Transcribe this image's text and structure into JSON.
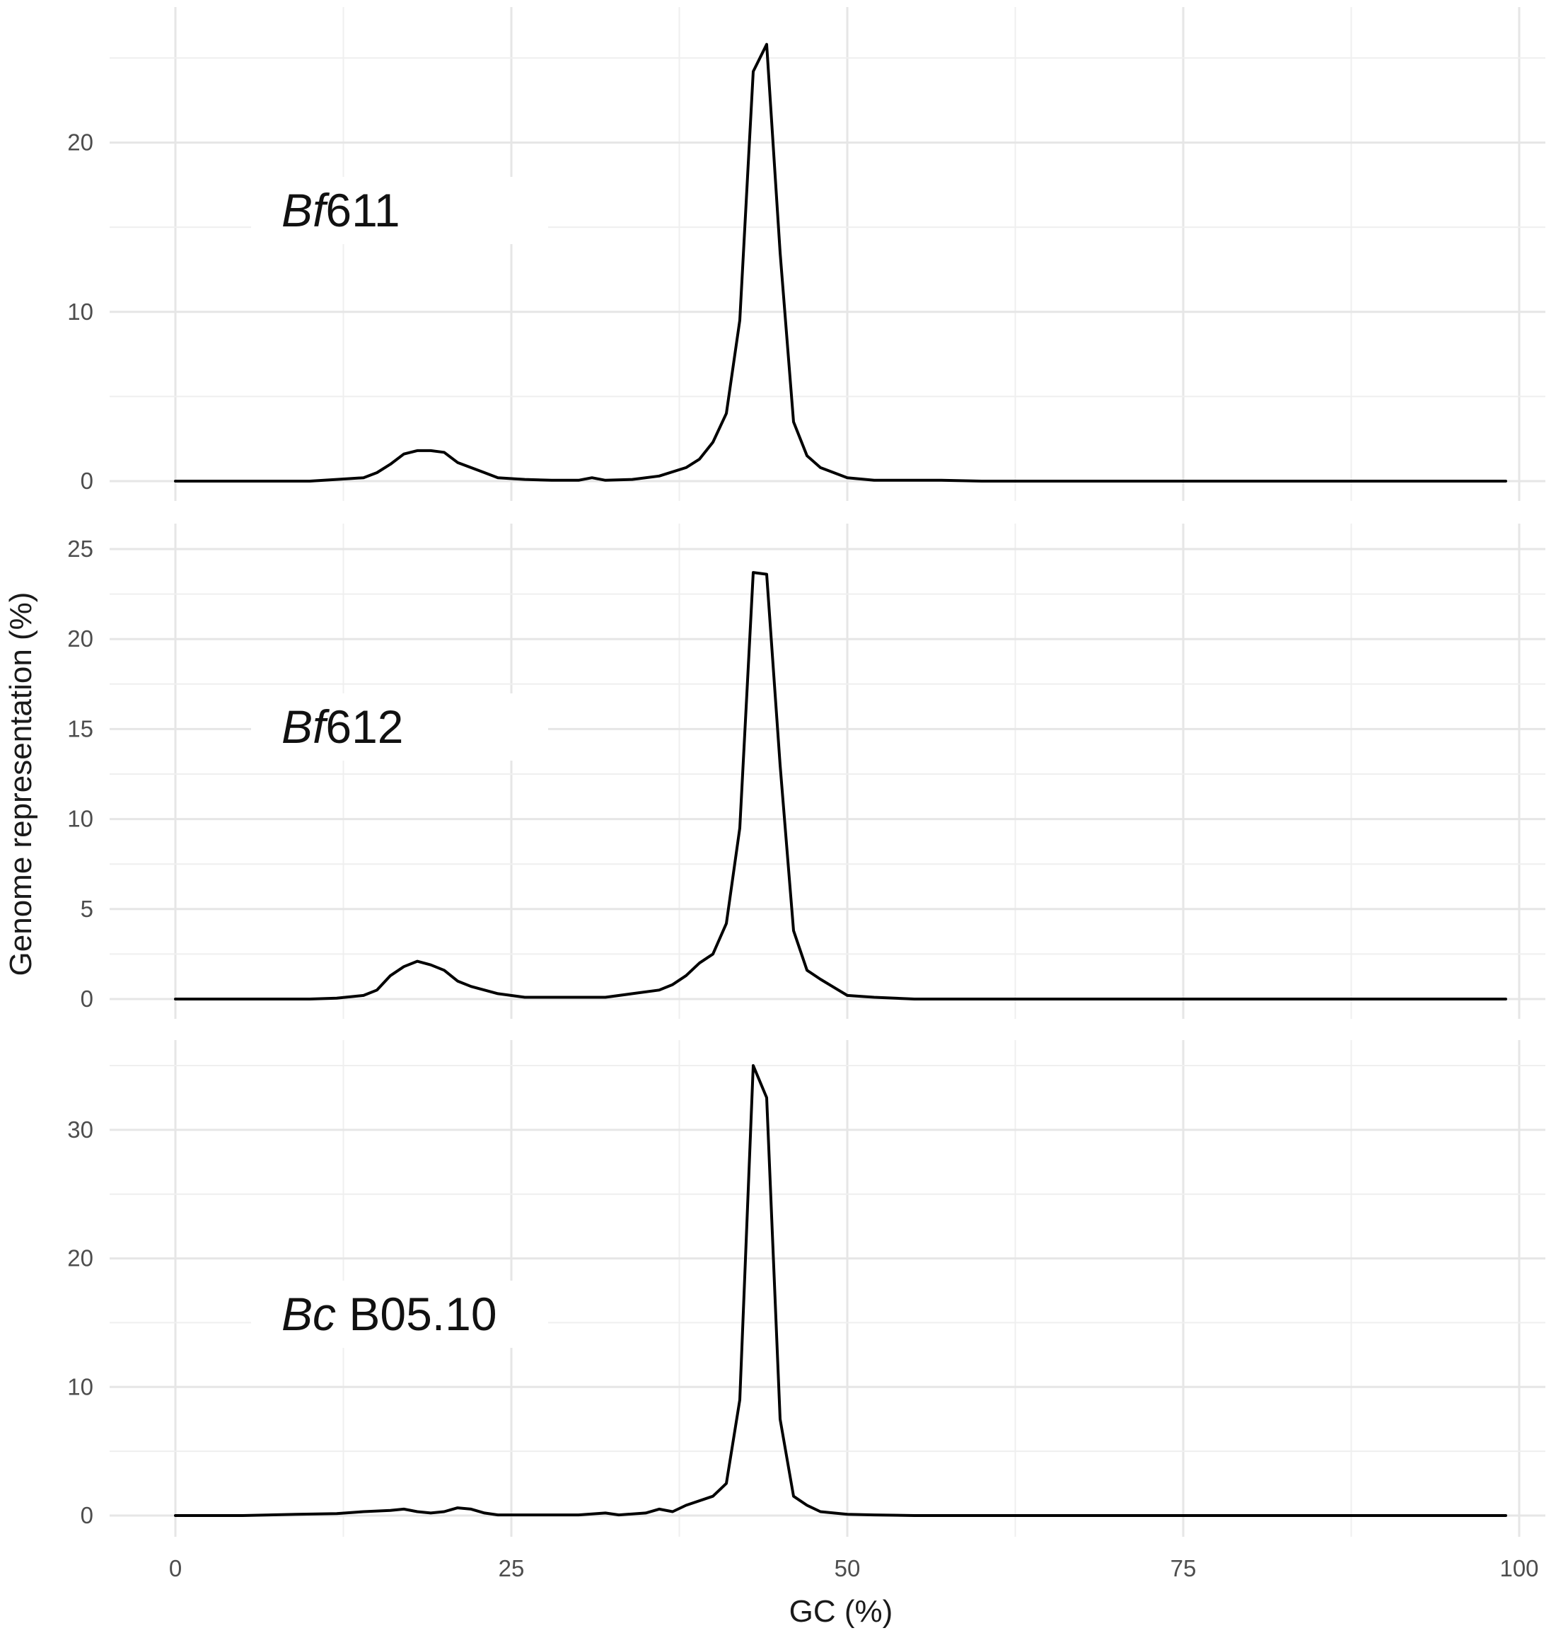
{
  "chart_data": {
    "type": "line",
    "xlabel": "GC (%)",
    "ylabel": "Genome representation (%)",
    "xlim": [
      0,
      100
    ],
    "x_ticks": [
      0,
      25,
      50,
      75,
      100
    ],
    "grid": true,
    "line_color": "#000000",
    "grid_color": "#e6e6e6",
    "panels": [
      {
        "label_italic": "Bf",
        "label_rest": "611",
        "ylim": [
          0,
          26.5
        ],
        "y_ticks": [
          0,
          10,
          20
        ],
        "x": [
          0,
          5,
          10,
          12,
          14,
          15,
          16,
          17,
          18,
          19,
          20,
          21,
          22,
          23,
          24,
          26,
          28,
          30,
          31,
          32,
          34,
          36,
          38,
          39,
          40,
          41,
          42,
          43,
          44,
          45,
          46,
          47,
          48,
          50,
          52,
          55,
          57,
          60,
          70,
          80,
          90,
          99
        ],
        "y": [
          0,
          0,
          0,
          0.1,
          0.2,
          0.5,
          1.0,
          1.6,
          1.8,
          1.8,
          1.7,
          1.1,
          0.8,
          0.5,
          0.2,
          0.1,
          0.05,
          0.05,
          0.2,
          0.05,
          0.1,
          0.3,
          0.8,
          1.3,
          2.3,
          4.0,
          9.5,
          24.2,
          25.8,
          13.5,
          3.5,
          1.5,
          0.8,
          0.2,
          0.05,
          0.05,
          0.05,
          0,
          0,
          0,
          0,
          0
        ]
      },
      {
        "label_italic": "Bf",
        "label_rest": "612",
        "ylim": [
          0,
          25
        ],
        "y_ticks": [
          0,
          5,
          10,
          15,
          20,
          25
        ],
        "x": [
          0,
          5,
          10,
          12,
          14,
          15,
          16,
          17,
          18,
          19,
          20,
          21,
          22,
          23,
          24,
          26,
          28,
          30,
          32,
          34,
          36,
          37,
          38,
          39,
          40,
          41,
          42,
          43,
          44,
          45,
          46,
          47,
          48,
          50,
          52,
          55,
          60,
          70,
          80,
          90,
          99
        ],
        "y": [
          0,
          0,
          0,
          0.05,
          0.2,
          0.5,
          1.3,
          1.8,
          2.1,
          1.9,
          1.6,
          1.0,
          0.7,
          0.5,
          0.3,
          0.1,
          0.1,
          0.1,
          0.1,
          0.3,
          0.5,
          0.8,
          1.3,
          2.0,
          2.5,
          4.2,
          9.5,
          23.7,
          23.6,
          13.0,
          3.8,
          1.6,
          1.1,
          0.2,
          0.1,
          0,
          0,
          0,
          0,
          0,
          0
        ]
      },
      {
        "label_italic": "Bc",
        "label_rest": " B05.10",
        "ylim": [
          0,
          35
        ],
        "y_ticks": [
          0,
          10,
          20,
          30
        ],
        "x": [
          0,
          5,
          9,
          12,
          14,
          16,
          17,
          18,
          19,
          20,
          21,
          22,
          23,
          24,
          26,
          30,
          32,
          33,
          35,
          36,
          37,
          38,
          40,
          41,
          42,
          43,
          44,
          45,
          46,
          47,
          48,
          50,
          52,
          55,
          60,
          70,
          80,
          90,
          99
        ],
        "y": [
          0,
          0,
          0.1,
          0.15,
          0.3,
          0.4,
          0.5,
          0.3,
          0.2,
          0.3,
          0.6,
          0.5,
          0.2,
          0.05,
          0.05,
          0.05,
          0.2,
          0.05,
          0.2,
          0.5,
          0.3,
          0.8,
          1.5,
          2.5,
          9.0,
          35.0,
          32.5,
          7.5,
          1.5,
          0.8,
          0.3,
          0.1,
          0.05,
          0,
          0,
          0,
          0,
          0,
          0
        ]
      }
    ]
  }
}
